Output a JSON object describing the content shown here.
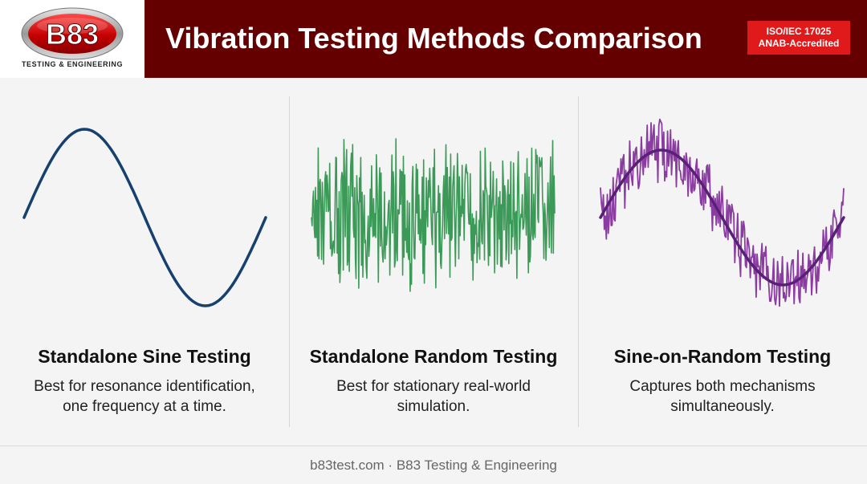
{
  "header": {
    "logo_text": "B83",
    "logo_tagline": "TESTING & ENGINEERING",
    "title": "Vibration Testing Methods Comparison",
    "badge_line1": "ISO/IEC 17025",
    "badge_line2": "ANAB-Accredited"
  },
  "panels": [
    {
      "title": "Standalone Sine Testing",
      "desc_line1": "Best for resonance identification,",
      "desc_line2": "one frequency at a time.",
      "wave_type": "sine",
      "color": "#17406e"
    },
    {
      "title": "Standalone Random Testing",
      "desc_line1": "Best for stationary real-world",
      "desc_line2": "simulation.",
      "wave_type": "random",
      "color": "#3c9a58"
    },
    {
      "title": "Sine-on-Random Testing",
      "desc_line1": "Captures both mechanisms",
      "desc_line2": "simultaneously.",
      "wave_type": "sine-on-random",
      "color": "#8a3ca0"
    }
  ],
  "footer": {
    "text": "b83test.com · B83 Testing & Engineering"
  },
  "colors": {
    "header_bg": "#640000",
    "badge_bg": "#e01a1a",
    "sine_overlay": "#5a1f78"
  }
}
